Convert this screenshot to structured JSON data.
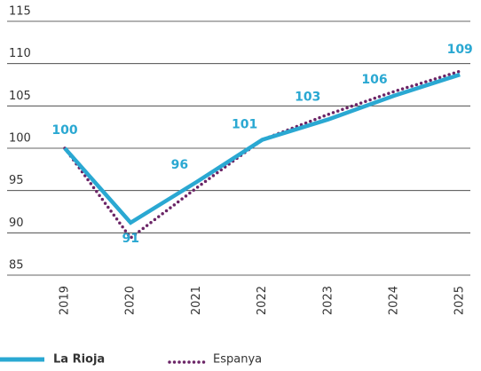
{
  "chart_data": {
    "type": "line",
    "categories": [
      "2019",
      "2020",
      "2021",
      "2022",
      "2023",
      "2024",
      "2025"
    ],
    "series": [
      {
        "name": "La Rioja",
        "color": "#2aa8d2",
        "style": "solid",
        "values": [
          100,
          91.2,
          96,
          101,
          103.4,
          106.2,
          108.7
        ],
        "value_labels": [
          "100",
          "91",
          "96",
          "101",
          "103",
          "106",
          "109"
        ]
      },
      {
        "name": "Espanya",
        "color": "#6b2466",
        "style": "dotted",
        "values": [
          100,
          89.4,
          95.3,
          101,
          104,
          106.7,
          109.1
        ]
      }
    ],
    "ylim": [
      85,
      115
    ],
    "yticks": [
      85,
      90,
      95,
      100,
      105,
      110,
      115
    ],
    "grid": true
  }
}
